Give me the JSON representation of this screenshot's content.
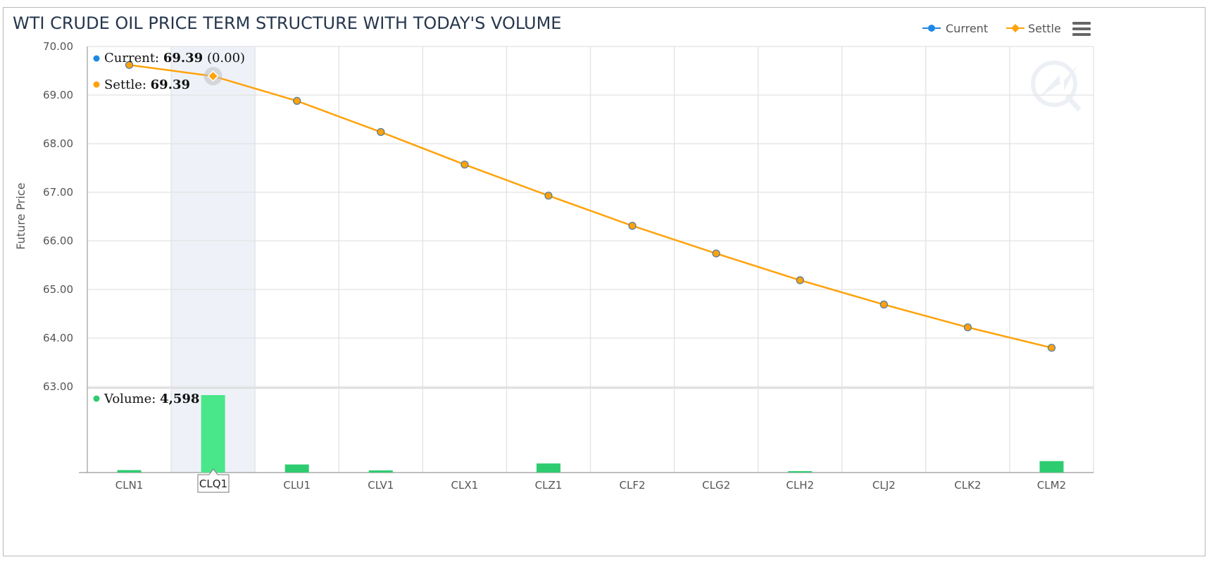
{
  "chart_data": {
    "type": "line",
    "title": "WTI CRUDE OIL PRICE TERM STRUCTURE WITH TODAY'S VOLUME",
    "ylabel": "Future Price",
    "ylim": [
      63.0,
      70.0
    ],
    "yticks": [
      "70.00",
      "69.00",
      "68.00",
      "67.00",
      "66.00",
      "65.00",
      "64.00",
      "63.00"
    ],
    "categories": [
      "CLN1",
      "CLQ1",
      "CLU1",
      "CLV1",
      "CLX1",
      "CLZ1",
      "CLF2",
      "CLG2",
      "CLH2",
      "CLJ2",
      "CLK2",
      "CLM2"
    ],
    "series": [
      {
        "name": "Current",
        "color": "#1e88e5",
        "values": [
          69.62,
          69.39,
          68.88,
          68.24,
          67.57,
          66.93,
          66.31,
          65.74,
          65.19,
          64.69,
          64.22,
          63.8
        ]
      },
      {
        "name": "Settle",
        "color": "#ffa20a",
        "values": [
          69.62,
          69.39,
          68.88,
          68.24,
          67.57,
          66.93,
          66.31,
          65.74,
          65.19,
          64.69,
          64.22,
          63.8
        ]
      }
    ],
    "volume": {
      "name": "Volume",
      "color": "#2ecc71",
      "values": [
        145,
        4598,
        480,
        130,
        0,
        540,
        0,
        0,
        60,
        0,
        0,
        680
      ]
    },
    "highlight_index": 1,
    "grid": true,
    "legend_placement": "top-right"
  },
  "tooltip": {
    "current_label": "Current: ",
    "current_value": "69.39",
    "current_change": " (0.00)",
    "settle_label": "Settle: ",
    "settle_value": "69.39",
    "volume_label": "Volume: ",
    "volume_value": "4,598",
    "category_flag": "CLQ1",
    "current_color": "#1e88e5",
    "settle_color": "#ffa20a",
    "volume_color": "#2ecc71"
  },
  "legend": {
    "current": "Current",
    "settle": "Settle"
  },
  "menu": {
    "icon": "hamburger-menu-icon"
  }
}
